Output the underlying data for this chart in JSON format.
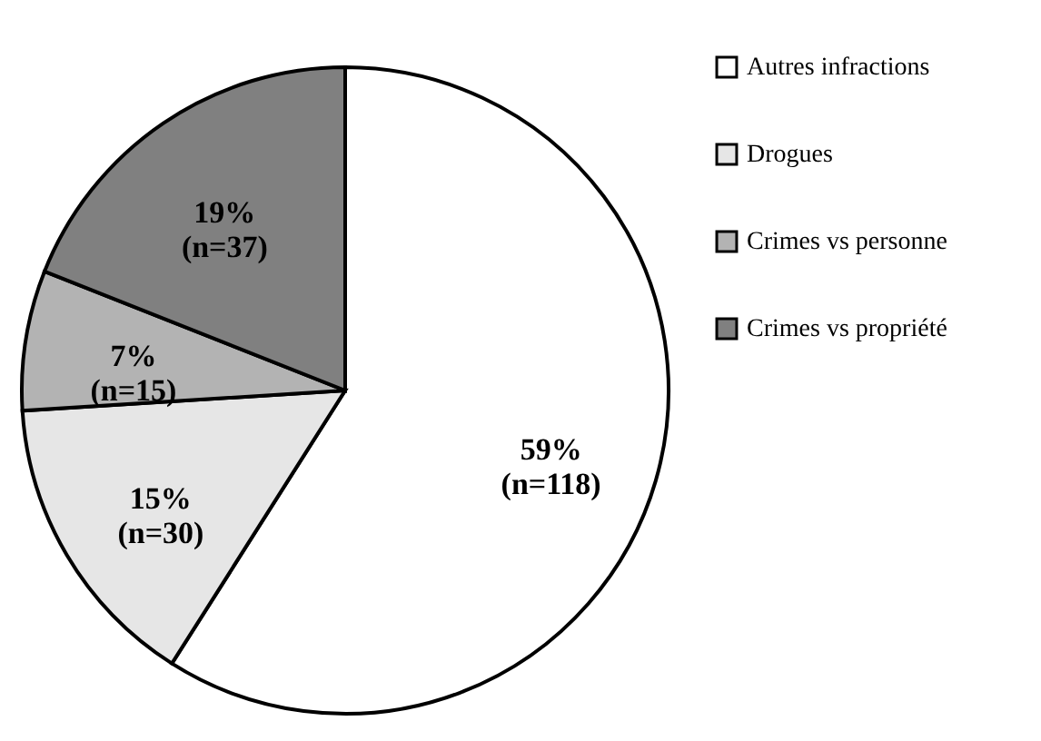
{
  "chart_data": {
    "type": "pie",
    "categories": [
      "Autres infractions",
      "Drogues",
      "Crimes vs personne",
      "Crimes vs propriété"
    ],
    "values": [
      59,
      15,
      7,
      19
    ],
    "value_labels": [
      "59%\n(n=118)",
      "15%\n(n=30)",
      "7%\n(n=15)",
      "19%\n(n=37)"
    ],
    "colors": [
      "#ffffff",
      "#e6e6e6",
      "#b3b3b3",
      "#808080"
    ],
    "legend": "right"
  }
}
